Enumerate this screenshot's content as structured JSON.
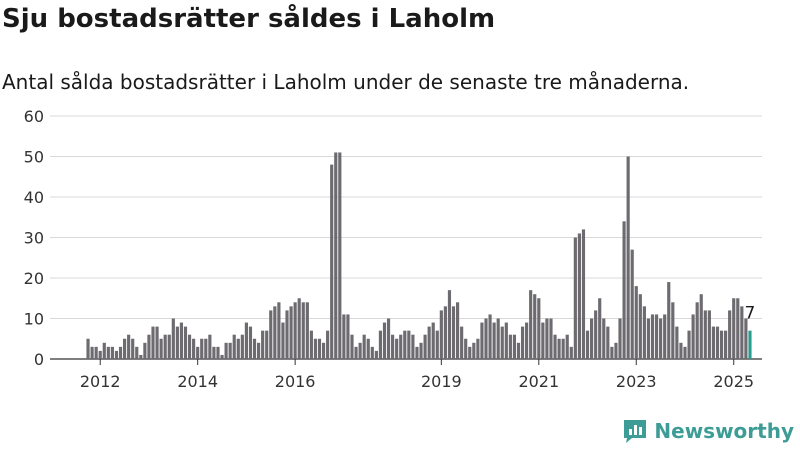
{
  "headline": "Sju bostadsrätter såldes i Laholm",
  "subheadline": "Antal sålda bostadsrätter i Laholm under de senaste tre månaderna.",
  "brand": {
    "name": "Newsworthy",
    "color": "#3d9d96"
  },
  "colors": {
    "bar": "#6d6b70",
    "highlight": "#2a9d8f",
    "grid": "#d9d9d9",
    "axis": "#333333"
  },
  "chart_data": {
    "type": "bar",
    "title": "Antal sålda bostadsrätter i Laholm under de senaste tre månaderna.",
    "xlabel": "",
    "ylabel": "",
    "ylim": [
      0,
      60
    ],
    "yticks": [
      0,
      10,
      20,
      30,
      40,
      50,
      60
    ],
    "xtick_labels": [
      {
        "label": "2012",
        "index": 3
      },
      {
        "label": "2014",
        "index": 27
      },
      {
        "label": "2016",
        "index": 51
      },
      {
        "label": "2019",
        "index": 87
      },
      {
        "label": "2021",
        "index": 111
      },
      {
        "label": "2023",
        "index": 135
      },
      {
        "label": "2025",
        "index": 159
      }
    ],
    "values": [
      5,
      3,
      3,
      2,
      4,
      3,
      3,
      2,
      3,
      5,
      6,
      5,
      3,
      1,
      4,
      6,
      8,
      8,
      5,
      6,
      6,
      10,
      8,
      9,
      8,
      6,
      5,
      3,
      5,
      5,
      6,
      3,
      3,
      1,
      4,
      4,
      6,
      5,
      6,
      9,
      8,
      5,
      4,
      7,
      7,
      12,
      13,
      14,
      9,
      12,
      13,
      14,
      15,
      14,
      14,
      7,
      5,
      5,
      4,
      7,
      48,
      51,
      51,
      11,
      11,
      6,
      3,
      4,
      6,
      5,
      3,
      2,
      7,
      9,
      10,
      6,
      5,
      6,
      7,
      7,
      6,
      3,
      4,
      6,
      8,
      9,
      7,
      12,
      13,
      17,
      13,
      14,
      8,
      5,
      3,
      4,
      5,
      9,
      10,
      11,
      9,
      10,
      8,
      9,
      6,
      6,
      4,
      8,
      9,
      17,
      16,
      15,
      9,
      10,
      10,
      6,
      5,
      5,
      6,
      3,
      30,
      31,
      32,
      7,
      10,
      12,
      15,
      10,
      8,
      3,
      4,
      10,
      34,
      50,
      27,
      18,
      16,
      13,
      10,
      11,
      11,
      10,
      11,
      19,
      14,
      8,
      4,
      3,
      7,
      11,
      14,
      16,
      12,
      12,
      8,
      8,
      7,
      7,
      12,
      15,
      15,
      13,
      10,
      7
    ],
    "highlight_index": 163,
    "annotation": "7"
  }
}
